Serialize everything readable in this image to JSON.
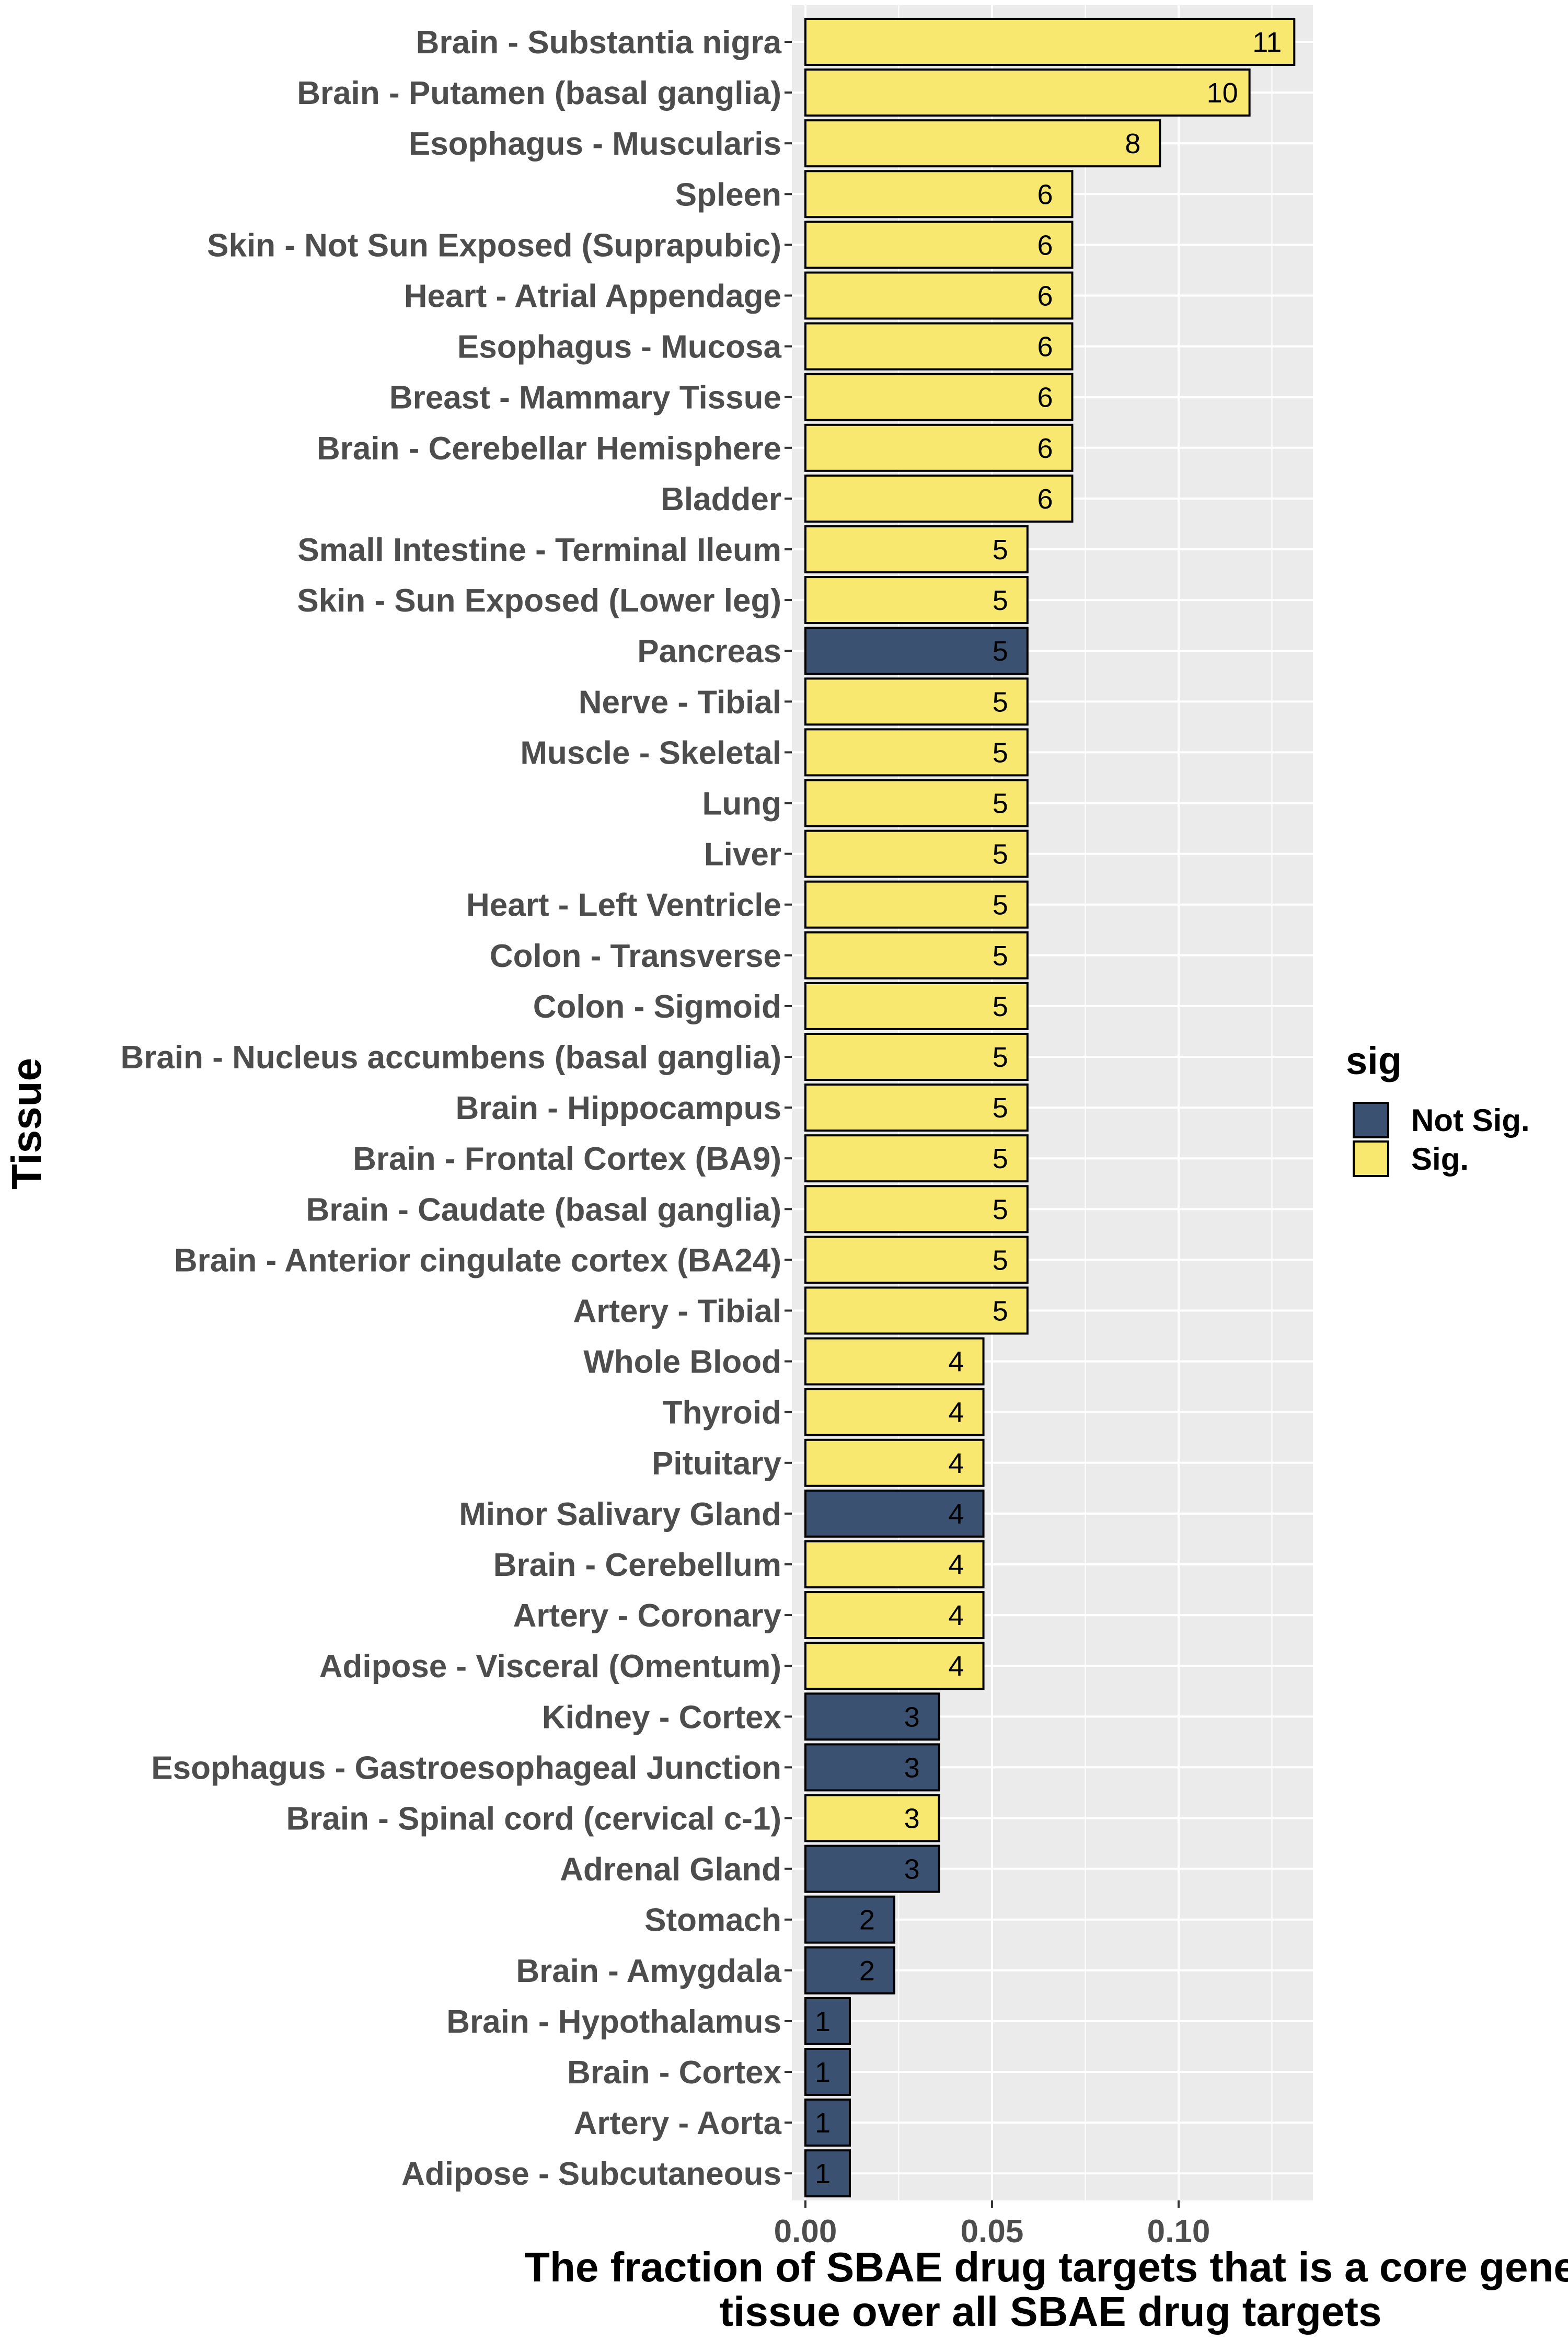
{
  "chart_data": {
    "type": "bar",
    "orientation": "horizontal",
    "xlabel": "The fraction of SBAE drug targets that is a core gene\ntissue over all SBAE drug targets",
    "ylabel": "Tissue",
    "xlim": [
      0,
      0.136
    ],
    "xticks": [
      0.0,
      0.05,
      0.1
    ],
    "xtick_labels": [
      "0.00",
      "0.05",
      "0.10"
    ],
    "grid": true,
    "legend": {
      "title": "sig",
      "placement": "right",
      "entries": [
        {
          "label": "Not Sig.",
          "color": "#3b5171"
        },
        {
          "label": "Sig.",
          "color": "#f9e86f"
        }
      ]
    },
    "categories": [
      "Brain - Substantia nigra",
      "Brain - Putamen (basal ganglia)",
      "Esophagus - Muscularis",
      "Spleen",
      "Skin - Not Sun Exposed (Suprapubic)",
      "Heart - Atrial Appendage",
      "Esophagus - Mucosa",
      "Breast - Mammary Tissue",
      "Brain - Cerebellar Hemisphere",
      "Bladder",
      "Small Intestine - Terminal Ileum",
      "Skin - Sun Exposed (Lower leg)",
      "Pancreas",
      "Nerve - Tibial",
      "Muscle - Skeletal",
      "Lung",
      "Liver",
      "Heart - Left Ventricle",
      "Colon - Transverse",
      "Colon - Sigmoid",
      "Brain - Nucleus accumbens (basal ganglia)",
      "Brain - Hippocampus",
      "Brain - Frontal Cortex (BA9)",
      "Brain - Caudate (basal ganglia)",
      "Brain - Anterior cingulate cortex (BA24)",
      "Artery - Tibial",
      "Whole Blood",
      "Thyroid",
      "Pituitary",
      "Minor Salivary Gland",
      "Brain - Cerebellum",
      "Artery - Coronary",
      "Adipose - Visceral (Omentum)",
      "Kidney - Cortex",
      "Esophagus - Gastroesophageal Junction",
      "Brain - Spinal cord (cervical c-1)",
      "Adrenal Gland",
      "Stomach",
      "Brain - Amygdala",
      "Brain - Hypothalamus",
      "Brain - Cortex",
      "Artery - Aorta",
      "Adipose - Subcutaneous"
    ],
    "values": [
      0.131,
      0.119,
      0.095,
      0.0715,
      0.0715,
      0.0715,
      0.0715,
      0.0715,
      0.0715,
      0.0715,
      0.0595,
      0.0595,
      0.0595,
      0.0595,
      0.0595,
      0.0595,
      0.0595,
      0.0595,
      0.0595,
      0.0595,
      0.0595,
      0.0595,
      0.0595,
      0.0595,
      0.0595,
      0.0595,
      0.0477,
      0.0477,
      0.0477,
      0.0477,
      0.0477,
      0.0477,
      0.0477,
      0.0358,
      0.0358,
      0.0358,
      0.0358,
      0.0238,
      0.0238,
      0.0119,
      0.0119,
      0.0119,
      0.0119
    ],
    "counts": [
      11,
      10,
      8,
      6,
      6,
      6,
      6,
      6,
      6,
      6,
      5,
      5,
      5,
      5,
      5,
      5,
      5,
      5,
      5,
      5,
      5,
      5,
      5,
      5,
      5,
      5,
      4,
      4,
      4,
      4,
      4,
      4,
      4,
      3,
      3,
      3,
      3,
      2,
      2,
      1,
      1,
      1,
      1
    ],
    "sig": [
      "Sig.",
      "Sig.",
      "Sig.",
      "Sig.",
      "Sig.",
      "Sig.",
      "Sig.",
      "Sig.",
      "Sig.",
      "Sig.",
      "Sig.",
      "Sig.",
      "Not Sig.",
      "Sig.",
      "Sig.",
      "Sig.",
      "Sig.",
      "Sig.",
      "Sig.",
      "Sig.",
      "Sig.",
      "Sig.",
      "Sig.",
      "Sig.",
      "Sig.",
      "Sig.",
      "Sig.",
      "Sig.",
      "Sig.",
      "Not Sig.",
      "Sig.",
      "Sig.",
      "Sig.",
      "Not Sig.",
      "Not Sig.",
      "Sig.",
      "Not Sig.",
      "Not Sig.",
      "Not Sig.",
      "Not Sig.",
      "Not Sig.",
      "Not Sig.",
      "Not Sig."
    ],
    "colors": {
      "panel": "#ebebeb",
      "grid": "#ffffff",
      "Sig.": "#f9e86f",
      "Not Sig.": "#3b5171",
      "bar_outline": "#000000"
    }
  }
}
